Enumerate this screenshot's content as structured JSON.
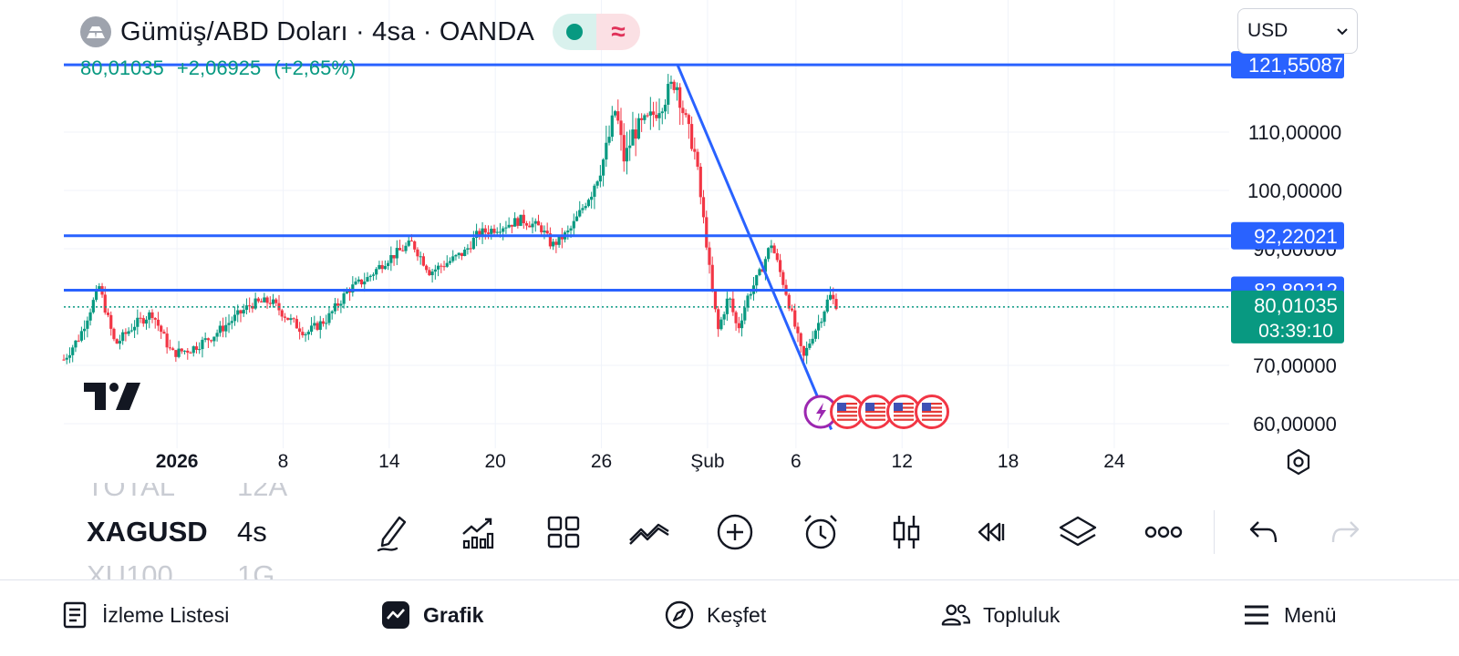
{
  "header": {
    "title": "Gümüş/ABD Doları · 4sa · OANDA",
    "status_icon": "market-open-dot",
    "status_color": "#089981",
    "wave_symbol": "≈"
  },
  "price_line": {
    "last": "80,01035",
    "change": "+2,06925",
    "change_pct": "(+2,65%)"
  },
  "currency_select": {
    "value": "USD"
  },
  "colors": {
    "up": "#089981",
    "down": "#f23645",
    "drawing_lines": "#2962ff",
    "grid": "#f0f3fa"
  },
  "chart_data": {
    "type": "candlestick",
    "title": "Gümüş/ABD Doları · 4sa · OANDA",
    "ylim": [
      58,
      124
    ],
    "y_ticks": [
      {
        "value": 60,
        "label": "60,00000"
      },
      {
        "value": 70,
        "label": "70,00000"
      },
      {
        "value": 90,
        "label": "90,00000"
      },
      {
        "value": 100,
        "label": "100,00000"
      },
      {
        "value": 110,
        "label": "110,00000"
      }
    ],
    "x_ticks": [
      {
        "day": 2,
        "label": "2026",
        "bold": true
      },
      {
        "day": 8,
        "label": "8"
      },
      {
        "day": 14,
        "label": "14"
      },
      {
        "day": 20,
        "label": "20"
      },
      {
        "day": 26,
        "label": "26"
      },
      {
        "day": 32,
        "label": "Şub"
      },
      {
        "day": 37,
        "label": "6"
      },
      {
        "day": 43,
        "label": "12"
      },
      {
        "day": 49,
        "label": "18"
      },
      {
        "day": 55,
        "label": "24"
      }
    ],
    "x_range_days": [
      -4.4,
      61.5
    ],
    "horizontal_lines": [
      {
        "value": 121.55087,
        "label": "121,55087"
      },
      {
        "value": 92.22021,
        "label": "92,22021"
      },
      {
        "value": 82.89212,
        "label": "82,89212"
      }
    ],
    "trend_line": [
      {
        "day": 30.3,
        "value": 121.55
      },
      {
        "day": 39.0,
        "value": 59.0
      }
    ],
    "last_price": {
      "value": 80.01035,
      "label": "80,01035",
      "countdown": "03:39:10"
    },
    "close_path": [
      {
        "day": -4.4,
        "value": 71
      },
      {
        "day": -3.5,
        "value": 75
      },
      {
        "day": -2.4,
        "value": 83.5
      },
      {
        "day": -1.5,
        "value": 73.5
      },
      {
        "day": -0.4,
        "value": 77
      },
      {
        "day": 0.6,
        "value": 79
      },
      {
        "day": 1.7,
        "value": 72
      },
      {
        "day": 2.8,
        "value": 72.8
      },
      {
        "day": 4.0,
        "value": 75
      },
      {
        "day": 5.2,
        "value": 78
      },
      {
        "day": 6.2,
        "value": 80.5
      },
      {
        "day": 7.3,
        "value": 81
      },
      {
        "day": 8.3,
        "value": 78
      },
      {
        "day": 9.3,
        "value": 75.5
      },
      {
        "day": 10.5,
        "value": 78
      },
      {
        "day": 11.7,
        "value": 83
      },
      {
        "day": 12.8,
        "value": 85
      },
      {
        "day": 13.8,
        "value": 88
      },
      {
        "day": 15.3,
        "value": 91
      },
      {
        "day": 16.3,
        "value": 86
      },
      {
        "day": 17.5,
        "value": 88
      },
      {
        "day": 18.3,
        "value": 89.5
      },
      {
        "day": 19.0,
        "value": 92.5
      },
      {
        "day": 20.5,
        "value": 94
      },
      {
        "day": 21.5,
        "value": 95
      },
      {
        "day": 22.6,
        "value": 93.5
      },
      {
        "day": 23.2,
        "value": 90.5
      },
      {
        "day": 24.2,
        "value": 93
      },
      {
        "day": 25.3,
        "value": 99
      },
      {
        "day": 26.2,
        "value": 106
      },
      {
        "day": 26.8,
        "value": 114
      },
      {
        "day": 27.3,
        "value": 105
      },
      {
        "day": 27.8,
        "value": 110
      },
      {
        "day": 28.7,
        "value": 112
      },
      {
        "day": 29.6,
        "value": 116
      },
      {
        "day": 30.2,
        "value": 119
      },
      {
        "day": 30.9,
        "value": 110
      },
      {
        "day": 31.2,
        "value": 108
      },
      {
        "day": 31.6,
        "value": 99
      },
      {
        "day": 31.9,
        "value": 92
      },
      {
        "day": 32.2,
        "value": 84
      },
      {
        "day": 32.6,
        "value": 76
      },
      {
        "day": 33.2,
        "value": 82
      },
      {
        "day": 33.7,
        "value": 76
      },
      {
        "day": 34.3,
        "value": 82
      },
      {
        "day": 35.0,
        "value": 86
      },
      {
        "day": 35.6,
        "value": 91
      },
      {
        "day": 36.0,
        "value": 87
      },
      {
        "day": 36.4,
        "value": 83
      },
      {
        "day": 37.0,
        "value": 76
      },
      {
        "day": 37.4,
        "value": 71
      },
      {
        "day": 37.9,
        "value": 75
      },
      {
        "day": 38.4,
        "value": 78
      },
      {
        "day": 38.9,
        "value": 82
      },
      {
        "day": 39.4,
        "value": 80
      }
    ],
    "event_markers": {
      "count": 4,
      "icon": "us-flag-icon",
      "special": "flash-icon"
    }
  },
  "watchlist": [
    {
      "symbol": "TOTAL",
      "interval": "12A",
      "faded": true
    },
    {
      "symbol": "XAGUSD",
      "interval": "4s",
      "faded": false
    },
    {
      "symbol": "XU100",
      "interval": "1G",
      "faded": true
    }
  ],
  "toolbar": [
    {
      "name": "draw-tool",
      "icon": "pencil-icon"
    },
    {
      "name": "indicators",
      "icon": "indicators-icon"
    },
    {
      "name": "layouts",
      "icon": "grid-icon"
    },
    {
      "name": "compare",
      "icon": "compare-icon"
    },
    {
      "name": "add",
      "icon": "plus-circle-icon"
    },
    {
      "name": "alert",
      "icon": "alarm-clock-icon"
    },
    {
      "name": "chart-type",
      "icon": "candles-icon"
    },
    {
      "name": "replay",
      "icon": "replay-icon"
    },
    {
      "name": "object-tree",
      "icon": "layers-icon"
    },
    {
      "name": "more",
      "icon": "more-icon"
    },
    {
      "name": "undo",
      "icon": "undo-icon"
    },
    {
      "name": "redo",
      "icon": "redo-icon"
    }
  ],
  "bottom_nav": {
    "watchlist": "İzleme Listesi",
    "chart": "Grafik",
    "explore": "Keşfet",
    "community": "Topluluk",
    "menu": "Menü"
  }
}
